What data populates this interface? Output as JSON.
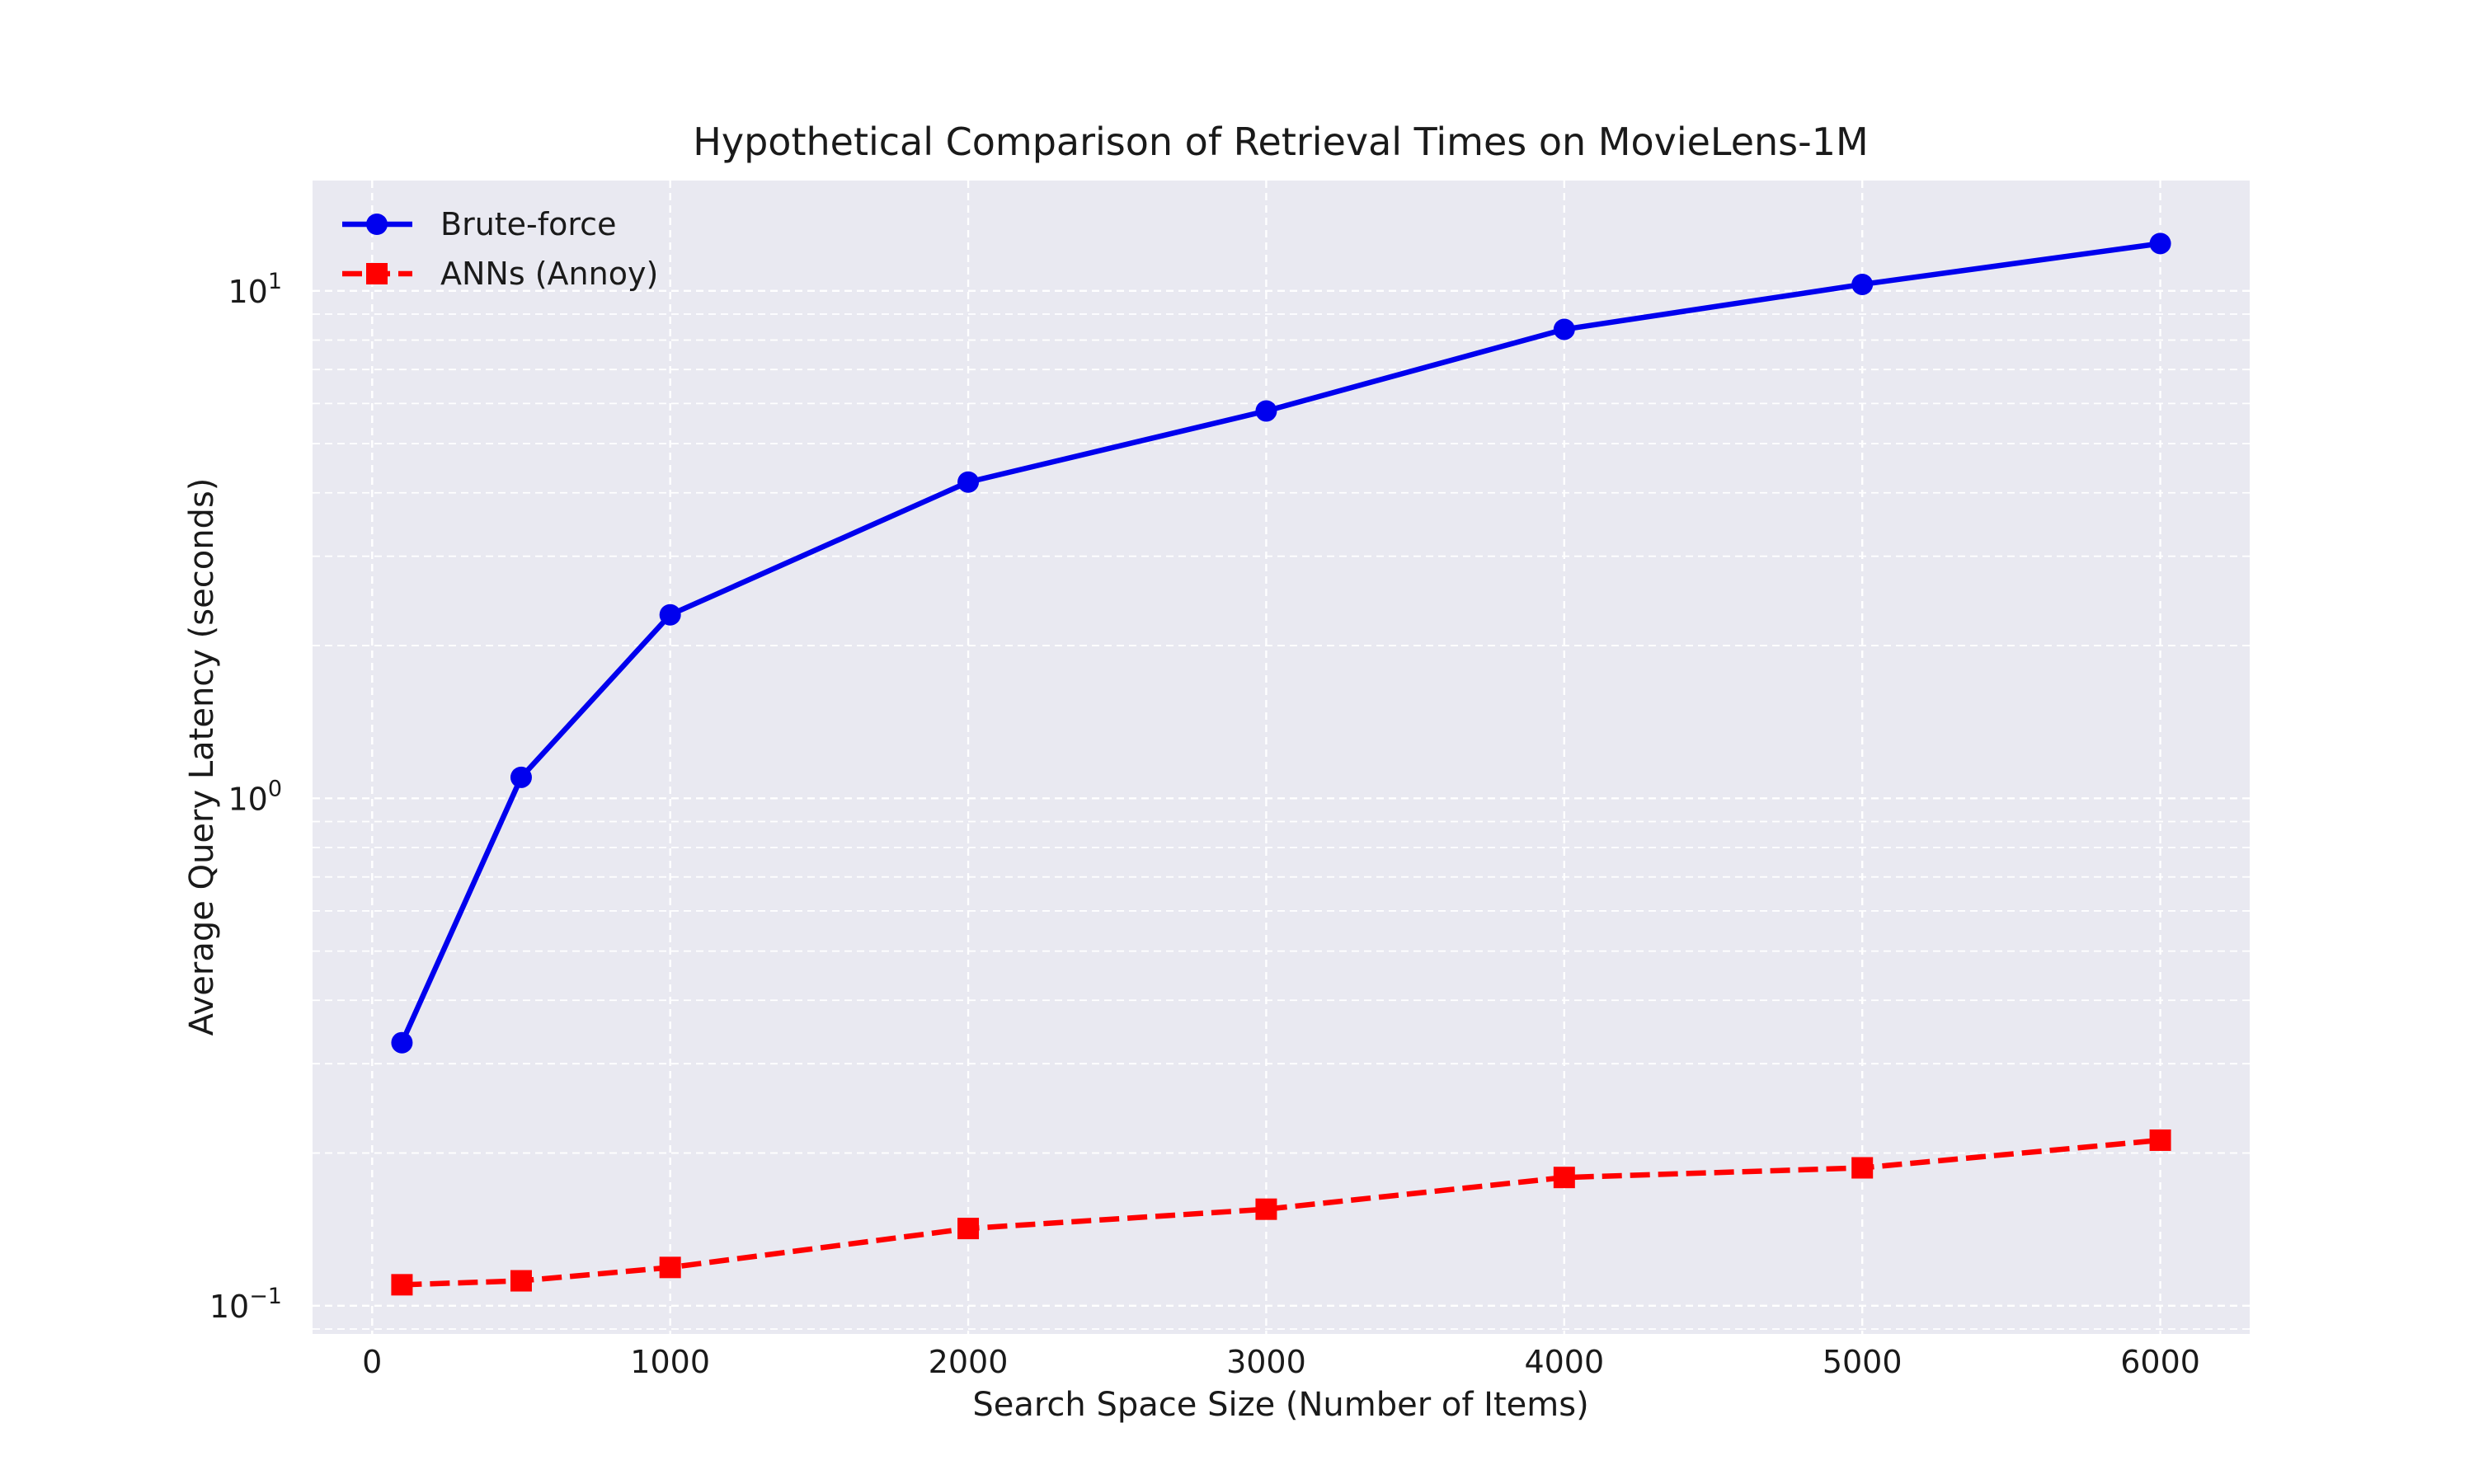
{
  "chart_data": {
    "type": "line",
    "title": "Hypothetical Comparison of Retrieval Times on MovieLens-1M",
    "xlabel": "Search Space Size (Number of Items)",
    "ylabel": "Average Query Latency (seconds)",
    "yscale": "log",
    "xlim": [
      -200,
      6300
    ],
    "ylim": [
      0.088,
      16.5
    ],
    "grid": true,
    "legend_position": "top-left",
    "x_ticks": [
      0,
      1000,
      2000,
      3000,
      4000,
      5000,
      6000
    ],
    "x_tick_labels": [
      "0",
      "1000",
      "2000",
      "3000",
      "4000",
      "5000",
      "6000"
    ],
    "y_ticks": [
      {
        "value": 0.1,
        "base": "10",
        "exp": "−1"
      },
      {
        "value": 1,
        "base": "10",
        "exp": "0"
      },
      {
        "value": 10,
        "base": "10",
        "exp": "1"
      }
    ],
    "x": [
      100,
      500,
      1000,
      2000,
      3000,
      4000,
      5000,
      6000
    ],
    "series": [
      {
        "name": "Brute-force",
        "color": "#0000ee",
        "marker": "circle",
        "line_style": "solid",
        "values": [
          0.33,
          1.1,
          2.3,
          4.2,
          5.8,
          8.4,
          10.3,
          12.4
        ]
      },
      {
        "name": "ANNs (Annoy)",
        "color": "#ff0000",
        "marker": "square",
        "line_style": "dashed",
        "values": [
          0.11,
          0.112,
          0.119,
          0.142,
          0.155,
          0.179,
          0.187,
          0.212
        ]
      }
    ]
  }
}
